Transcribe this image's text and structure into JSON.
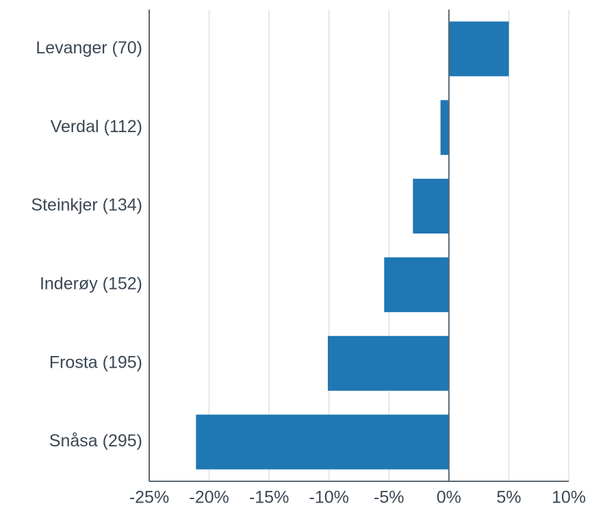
{
  "chart_data": {
    "type": "barh",
    "categories": [
      "Levanger (70)",
      "Verdal (112)",
      "Steinkjer (134)",
      "Inderøy (152)",
      "Frosta (195)",
      "Snåsa (295)"
    ],
    "values": [
      5.0,
      -0.7,
      -3.0,
      -5.4,
      -10.1,
      -21.1
    ],
    "color": "#1f77b4",
    "xlim": [
      -25,
      10
    ],
    "xticks": [
      {
        "value": -25,
        "label": "-25%"
      },
      {
        "value": -20,
        "label": "-20%"
      },
      {
        "value": -15,
        "label": "-15%"
      },
      {
        "value": -10,
        "label": "-10%"
      },
      {
        "value": -5,
        "label": "-5%"
      },
      {
        "value": 0,
        "label": "0%"
      },
      {
        "value": 5,
        "label": "5%"
      },
      {
        "value": 10,
        "label": "10%"
      }
    ],
    "grid": true
  }
}
